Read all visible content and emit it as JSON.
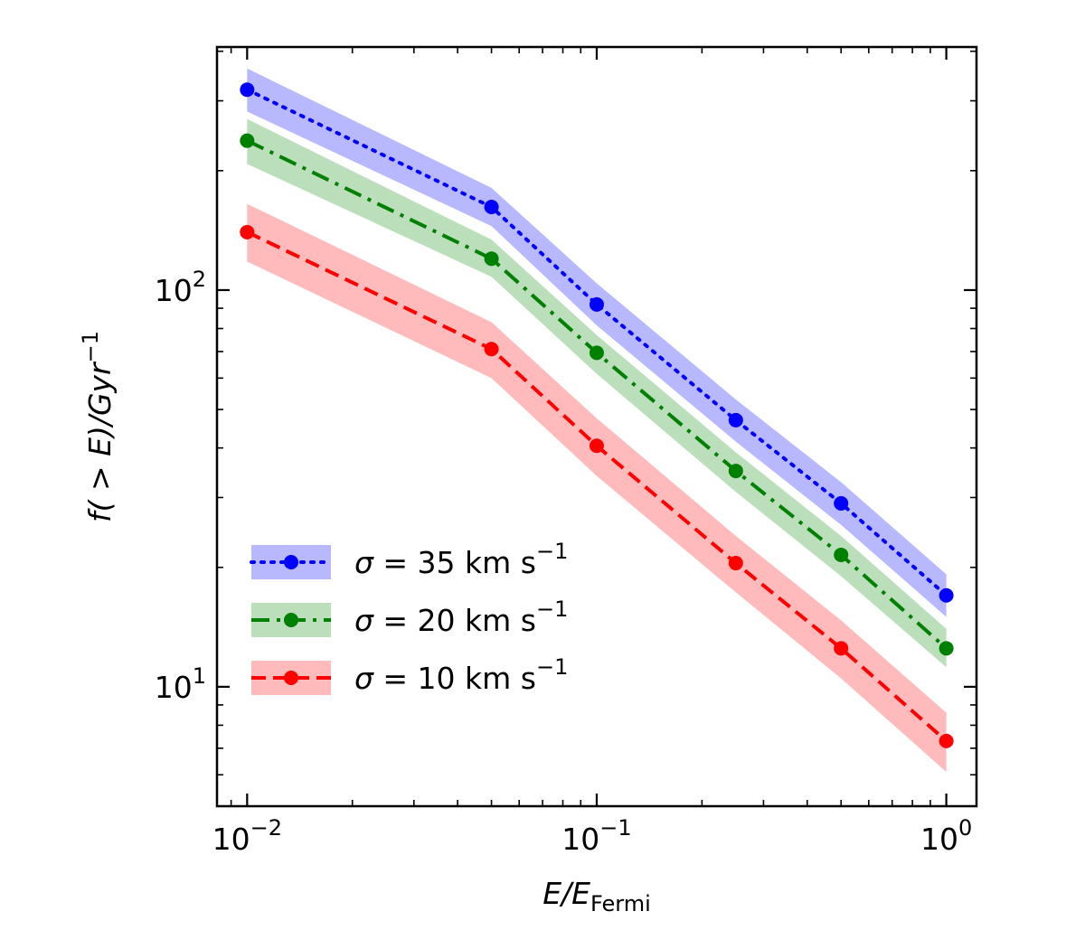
{
  "chart_data": {
    "type": "line",
    "x_scale": "log",
    "y_scale": "log",
    "xlabel": "E/E_Fermi",
    "xlabel_main": "E/E",
    "xlabel_sub": "Fermi",
    "ylabel": "f(>E)/Gyr^-1",
    "ylabel_main": "f( > E)/Gyr",
    "ylabel_sup": "−1",
    "xlim": [
      0.0082,
      1.22
    ],
    "ylim": [
      5.0,
      410
    ],
    "x_ticks": [
      {
        "value": 0.01,
        "base": "10",
        "exp": "−2"
      },
      {
        "value": 0.1,
        "base": "10",
        "exp": "−1"
      },
      {
        "value": 1,
        "base": "10",
        "exp": "0"
      }
    ],
    "y_ticks": [
      {
        "value": 10,
        "base": "10",
        "exp": "1"
      },
      {
        "value": 100,
        "base": "10",
        "exp": "2"
      }
    ],
    "x": [
      0.01,
      0.05,
      0.1,
      0.25,
      0.5,
      1.0
    ],
    "series": [
      {
        "name": "σ = 35 km s−1",
        "label_prefix": "σ = 35 km s",
        "label_sup": "−1",
        "color": "#0000ff",
        "band_color": "#b8b8ff",
        "style": "dotted",
        "values": [
          320,
          162,
          92,
          47,
          29,
          17
        ],
        "lower": [
          282,
          145,
          81.5,
          41.5,
          25.6,
          15
        ],
        "upper": [
          362,
          181,
          104,
          53,
          32.8,
          19.2
        ]
      },
      {
        "name": "σ = 20 km s−1",
        "label_prefix": "σ = 20 km s",
        "label_sup": "−1",
        "color": "#008000",
        "band_color": "#bbdebb",
        "style": "dashdot",
        "values": [
          238,
          120,
          69.5,
          35,
          21.5,
          12.5
        ],
        "lower": [
          208,
          108,
          61.5,
          31,
          19,
          11.2
        ],
        "upper": [
          270,
          134,
          77,
          39,
          24,
          14
        ]
      },
      {
        "name": "σ = 10 km s−1",
        "label_prefix": "σ = 10 km s",
        "label_sup": "−1",
        "color": "#ff0000",
        "band_color": "#ffbbbb",
        "style": "dashed",
        "values": [
          140,
          71,
          40.5,
          20.5,
          12.5,
          7.3
        ],
        "lower": [
          118,
          60,
          34,
          17.3,
          10.5,
          6.1
        ],
        "upper": [
          165,
          83,
          47.5,
          24,
          14.7,
          8.6
        ]
      }
    ],
    "legend": {
      "position": "lower-left"
    }
  }
}
